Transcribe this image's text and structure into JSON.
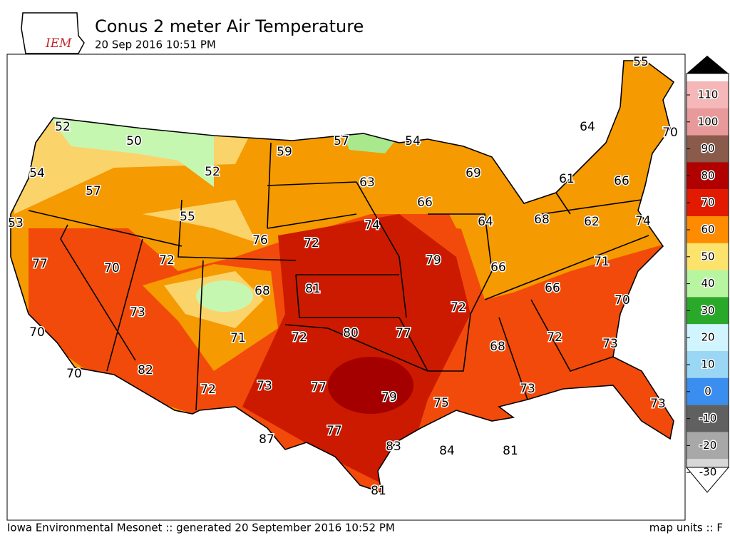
{
  "header": {
    "logo": "IEM",
    "title": "Conus 2 meter Air Temperature",
    "subtitle": "20 Sep 2016 10:51 PM"
  },
  "stations": [
    52,
    50,
    54,
    57,
    52,
    59,
    57,
    54,
    64,
    70,
    55,
    53,
    55,
    63,
    69,
    61,
    66,
    66,
    76,
    72,
    74,
    64,
    68,
    62,
    74,
    77,
    70,
    72,
    79,
    66,
    71,
    81,
    68,
    66,
    70,
    73,
    72,
    70,
    71,
    72,
    80,
    77,
    68,
    72,
    73,
    70,
    82,
    72,
    73,
    77,
    79,
    75,
    73,
    73,
    87,
    77,
    83,
    84,
    81,
    81
  ],
  "colorbar": {
    "ticks": [
      110,
      100,
      90,
      80,
      70,
      60,
      50,
      40,
      30,
      20,
      10,
      0,
      -10,
      -20,
      -30
    ]
  },
  "footer": {
    "credit": "Iowa Environmental Mesonet :: generated 20 September 2016 10:52 PM",
    "units": "map units :: F"
  }
}
